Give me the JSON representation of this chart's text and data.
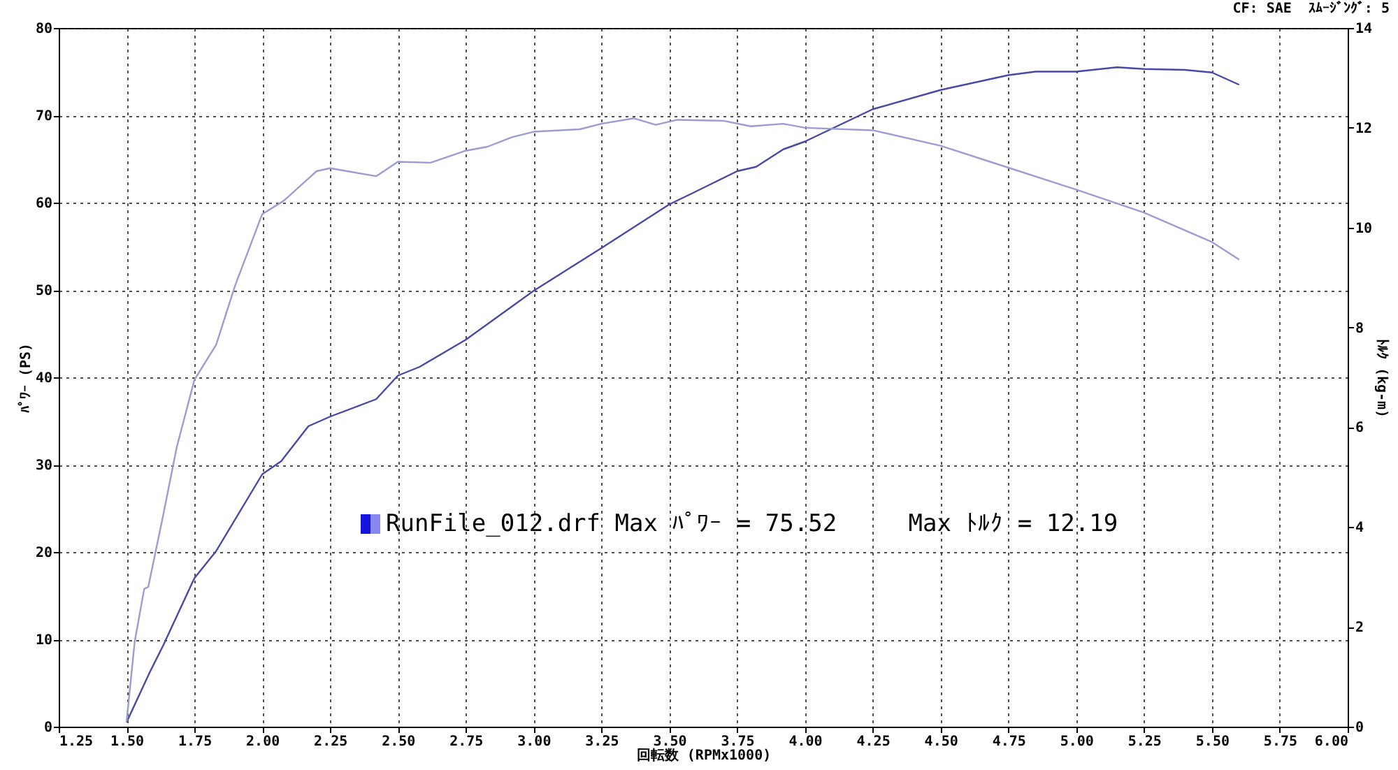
{
  "chart_data": {
    "type": "line",
    "xlabel": "回転数 (RPMx1000)",
    "ylabel": "ﾊﾟﾜｰ (PS)",
    "y2label": "ﾄﾙｸ (kg-m)",
    "annotations": [
      "CF: SAE  ｽﾑｰｼﾞﾝｸﾞ: 5",
      "RunFile_012.drf Max ﾊﾟﾜｰ = 75.52     Max ﾄﾙｸ = 12.19"
    ],
    "xlim": [
      1.25,
      6.0
    ],
    "xticks": [
      {
        "value": 1.25,
        "label": "1.25"
      },
      {
        "value": 1.5,
        "label": "1.50"
      },
      {
        "value": 1.75,
        "label": "1.75"
      },
      {
        "value": 2,
        "label": "2.00"
      },
      {
        "value": 2.25,
        "label": "2.25"
      },
      {
        "value": 2.5,
        "label": "2.50"
      },
      {
        "value": 2.75,
        "label": "2.75"
      },
      {
        "value": 3,
        "label": "3.00"
      },
      {
        "value": 3.25,
        "label": "3.25"
      },
      {
        "value": 3.5,
        "label": "3.50"
      },
      {
        "value": 3.75,
        "label": "3.75"
      },
      {
        "value": 4,
        "label": "4.00"
      },
      {
        "value": 4.25,
        "label": "4.25"
      },
      {
        "value": 4.5,
        "label": "4.50"
      },
      {
        "value": 4.75,
        "label": "4.75"
      },
      {
        "value": 5,
        "label": "5.00"
      },
      {
        "value": 5.25,
        "label": "5.25"
      },
      {
        "value": 5.5,
        "label": "5.50"
      },
      {
        "value": 5.75,
        "label": "5.75"
      },
      {
        "value": 6,
        "label": "6.00"
      }
    ],
    "ylim": [
      0,
      80
    ],
    "yticks": [
      0,
      10,
      20,
      30,
      40,
      50,
      60,
      70,
      80
    ],
    "y2lim": [
      0,
      14
    ],
    "y2ticks": [
      0,
      2,
      4,
      6,
      8,
      10,
      12,
      14
    ],
    "grid": true,
    "series": [
      {
        "color": "#4848a8",
        "x": [
          1.5,
          1.585,
          1.635,
          1.75,
          1.83,
          2.0,
          2.07,
          2.17,
          2.25,
          2.42,
          2.5,
          2.58,
          2.75,
          3.0,
          3.25,
          3.38,
          3.5,
          3.58,
          3.75,
          3.82,
          3.92,
          4.0,
          4.25,
          4.5,
          4.75,
          4.85,
          5.0,
          5.15,
          5.25,
          5.4,
          5.5,
          5.6
        ],
        "values": [
          0.5,
          6.2,
          9.3,
          17.0,
          20.1,
          28.9,
          30.4,
          34.4,
          35.5,
          37.5,
          40.2,
          41.2,
          44.3,
          49.9,
          54.8,
          57.4,
          59.8,
          61.0,
          63.6,
          64.1,
          66.1,
          67.0,
          70.7,
          72.9,
          74.6,
          75.0,
          75.0,
          75.5,
          75.3,
          75.2,
          74.9,
          73.5
        ]
      },
      {
        "color": "#9c9cd4",
        "axis": "y2",
        "x": [
          1.5,
          1.53,
          1.565,
          1.58,
          1.635,
          1.685,
          1.75,
          1.83,
          1.9,
          2.0,
          2.08,
          2.2,
          2.25,
          2.42,
          2.5,
          2.62,
          2.75,
          2.83,
          2.92,
          3.0,
          3.17,
          3.25,
          3.37,
          3.45,
          3.53,
          3.7,
          3.8,
          3.92,
          4.0,
          4.25,
          4.5,
          4.75,
          5.0,
          5.25,
          5.5,
          5.6
        ],
        "values": [
          0.1,
          1.7,
          2.76,
          2.8,
          4.24,
          5.6,
          6.95,
          7.65,
          8.84,
          10.27,
          10.54,
          11.13,
          11.19,
          11.03,
          11.32,
          11.3,
          11.54,
          11.62,
          11.81,
          11.92,
          11.97,
          12.08,
          12.19,
          12.06,
          12.16,
          12.14,
          12.03,
          12.08,
          12.0,
          11.95,
          11.64,
          11.2,
          10.76,
          10.3,
          9.71,
          9.36
        ]
      }
    ]
  }
}
